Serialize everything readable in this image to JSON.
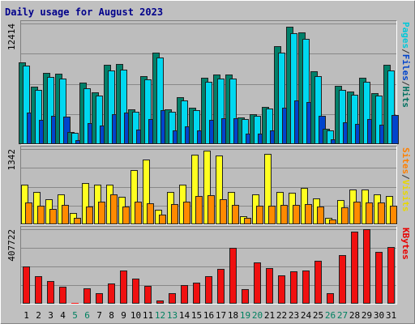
{
  "chart_data": {
    "type": "bar",
    "title": "Daily usage for August 2023",
    "categories": [
      "1",
      "2",
      "3",
      "4",
      "5",
      "6",
      "7",
      "8",
      "9",
      "10",
      "11",
      "12",
      "13",
      "14",
      "15",
      "16",
      "17",
      "18",
      "19",
      "20",
      "21",
      "22",
      "23",
      "24",
      "25",
      "26",
      "27",
      "28",
      "29",
      "30",
      "31"
    ],
    "weekend_days": [
      "5",
      "6",
      "12",
      "13",
      "19",
      "20",
      "26",
      "27"
    ],
    "panels": [
      {
        "id": "pages-files-hits",
        "ymax_label": "12414",
        "ymax": 12414,
        "right_labels": [
          {
            "text": "Pages",
            "color": "#00c8d8"
          },
          {
            "text": "/",
            "color": "#333333"
          },
          {
            "text": "Files",
            "color": "#0044cc"
          },
          {
            "text": "/",
            "color": "#333333"
          },
          {
            "text": "Hits",
            "color": "#007060"
          }
        ],
        "series": [
          {
            "name": "Hits",
            "color": "#00806a",
            "values": [
              8400,
              5930,
              7330,
              7270,
              1290,
              6330,
              5370,
              8130,
              8220,
              3570,
              7040,
              9430,
              3590,
              4870,
              3720,
              6800,
              7190,
              7150,
              2780,
              3090,
              3820,
              10050,
              12090,
              11470,
              7530,
              1570,
              5990,
              5420,
              6850,
              5280,
              8140
            ]
          },
          {
            "name": "Files",
            "color": "#00d8f0",
            "values": [
              8070,
              5570,
              6900,
              6740,
              1140,
              5780,
              5010,
              7550,
              7700,
              3330,
              6640,
              8900,
              3330,
              4500,
              3530,
              6380,
              6760,
              6760,
              2600,
              2930,
              3690,
              9400,
              11450,
              10800,
              7030,
              1400,
              5600,
              5070,
              6400,
              4960,
              7600
            ]
          },
          {
            "name": "Pages",
            "color": "#0044cc",
            "values": [
              3210,
              2480,
              2900,
              2810,
              420,
              2160,
              1920,
              3080,
              3270,
              1470,
              2620,
              3500,
              1420,
              1820,
              1390,
              2540,
              2640,
              2650,
              1070,
              1120,
              1440,
              3730,
              4520,
              4350,
              2890,
              520,
              2250,
              2070,
              2610,
              1990,
              2990
            ]
          }
        ]
      },
      {
        "id": "visits-sites",
        "ymax_label": "1342",
        "ymax": 1342,
        "right_labels": [
          {
            "text": "Sites",
            "color": "#ff8000"
          },
          {
            "text": "/",
            "color": "#333333"
          },
          {
            "text": "Visits",
            "color": "#e8d800"
          }
        ],
        "series": [
          {
            "name": "Visits",
            "color": "#ffff20",
            "values": [
              700,
              570,
              450,
              530,
              200,
              740,
              710,
              710,
              490,
              970,
              1160,
              260,
              570,
              700,
              1240,
              1320,
              1220,
              580,
              150,
              540,
              1260,
              570,
              560,
              650,
              460,
              120,
              440,
              620,
              620,
              540,
              500
            ]
          },
          {
            "name": "Sites",
            "color": "#ff8a00",
            "values": [
              390,
              330,
              280,
              350,
              120,
              320,
              400,
              530,
              320,
              400,
              380,
              170,
              360,
              400,
              510,
              520,
              450,
              340,
              120,
              330,
              330,
              350,
              350,
              360,
              320,
              80,
              300,
              400,
              390,
              390,
              330
            ]
          }
        ]
      },
      {
        "id": "kbytes",
        "ymax_label": "407722",
        "ymax": 407722,
        "right_labels": [
          {
            "text": "KBytes",
            "color": "#e80000"
          }
        ],
        "series": [
          {
            "name": "KBytes",
            "color": "#f01010",
            "values": [
              205000,
              152000,
              124000,
              94000,
              4000,
              82000,
              58000,
              112000,
              183000,
              137000,
              98000,
              18000,
              58000,
              103000,
              116000,
              150000,
              192000,
              305000,
              81000,
              226000,
              194000,
              153000,
              179000,
              183000,
              235000,
              57000,
              267000,
              394000,
              407722,
              285000,
              311000
            ]
          }
        ]
      }
    ]
  }
}
